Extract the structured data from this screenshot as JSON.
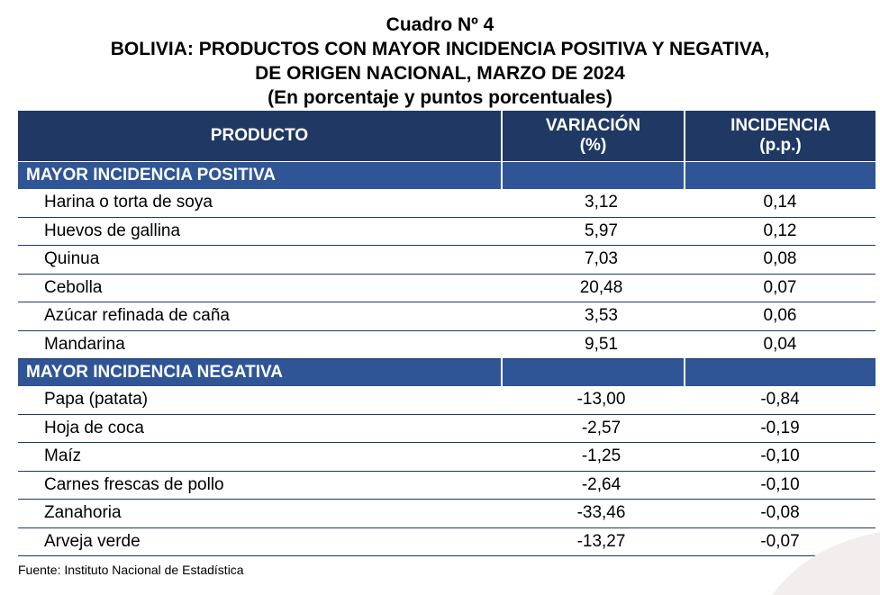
{
  "title": {
    "line1": "Cuadro Nº 4",
    "line2": "BOLIVIA: PRODUCTOS CON MAYOR INCIDENCIA POSITIVA Y NEGATIVA,",
    "line3": "DE ORIGEN NACIONAL, MARZO DE 2024",
    "line4": "(En porcentaje y puntos porcentuales)"
  },
  "table": {
    "headers": {
      "producto": "PRODUCTO",
      "variacion": "VARIACIÓN",
      "variacion_unit": "(%)",
      "incidencia": "INCIDENCIA",
      "incidencia_unit": "(p.p.)"
    },
    "positive": {
      "label": "MAYOR INCIDENCIA POSITIVA",
      "rows": [
        {
          "producto": "Harina o torta de soya",
          "variacion": "3,12",
          "incidencia": "0,14"
        },
        {
          "producto": "Huevos de gallina",
          "variacion": "5,97",
          "incidencia": "0,12"
        },
        {
          "producto": "Quinua",
          "variacion": "7,03",
          "incidencia": "0,08"
        },
        {
          "producto": "Cebolla",
          "variacion": "20,48",
          "incidencia": "0,07"
        },
        {
          "producto": "Azúcar refinada de caña",
          "variacion": "3,53",
          "incidencia": "0,06"
        },
        {
          "producto": "Mandarina",
          "variacion": "9,51",
          "incidencia": "0,04"
        }
      ]
    },
    "negative": {
      "label": "MAYOR INCIDENCIA NEGATIVA",
      "rows": [
        {
          "producto": "Papa (patata)",
          "variacion": "-13,00",
          "incidencia": "-0,84"
        },
        {
          "producto": "Hoja de coca",
          "variacion": "-2,57",
          "incidencia": "-0,19"
        },
        {
          "producto": "Maíz",
          "variacion": "-1,25",
          "incidencia": "-0,10"
        },
        {
          "producto": "Carnes frescas de pollo",
          "variacion": "-2,64",
          "incidencia": "-0,10"
        },
        {
          "producto": "Zanahoria",
          "variacion": "-33,46",
          "incidencia": "-0,08"
        },
        {
          "producto": "Arveja verde",
          "variacion": "-13,27",
          "incidencia": "-0,07"
        }
      ]
    }
  },
  "source": "Fuente: Instituto Nacional de Estadística",
  "colors": {
    "header_bg": "#1f3864",
    "section_bg": "#2f5597",
    "rule": "#1f3864"
  }
}
